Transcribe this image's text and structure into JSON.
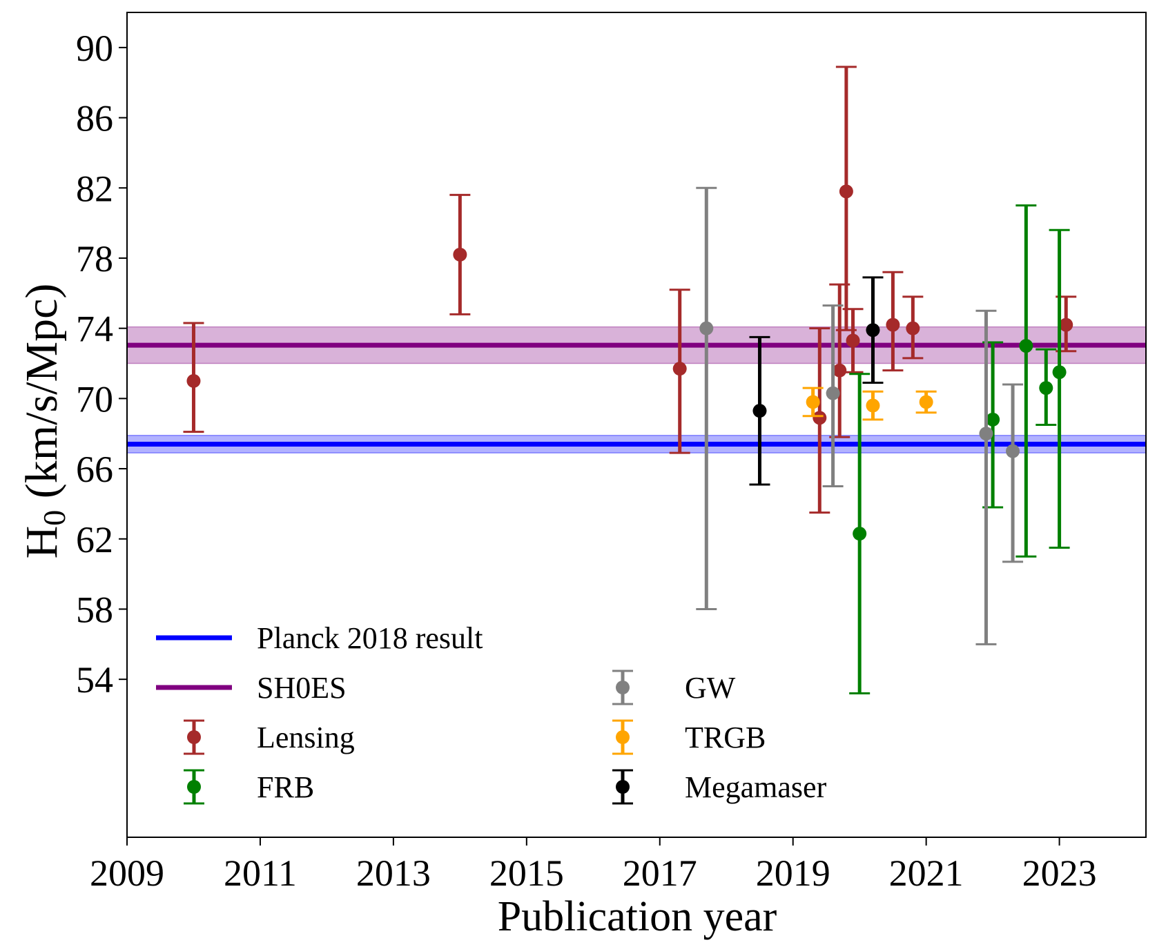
{
  "chart_data": {
    "type": "scatter",
    "xlabel": "Publication year",
    "ylabel_main": "H",
    "ylabel_sub": "0",
    "ylabel_rest": " (km/s/Mpc)",
    "xlim": [
      2009,
      2024.3
    ],
    "ylim": [
      45,
      92
    ],
    "xticks": [
      2009,
      2011,
      2013,
      2015,
      2017,
      2019,
      2021,
      2023
    ],
    "yticks": [
      54,
      58,
      62,
      66,
      70,
      74,
      78,
      82,
      86,
      90
    ],
    "bands": [
      {
        "name": "Planck 2018 result",
        "value": 67.4,
        "err": 0.5,
        "color": "#0000ff"
      },
      {
        "name": "SH0ES",
        "value": 73.04,
        "err": 1.04,
        "color": "#800080"
      }
    ],
    "series": [
      {
        "name": "Lensing",
        "color": "#a52a2a",
        "points": [
          {
            "x": 2010.0,
            "y": 71.0,
            "lo": 68.1,
            "hi": 74.3
          },
          {
            "x": 2014.0,
            "y": 78.2,
            "lo": 74.8,
            "hi": 81.6
          },
          {
            "x": 2017.3,
            "y": 71.7,
            "lo": 66.9,
            "hi": 76.2
          },
          {
            "x": 2019.4,
            "y": 68.9,
            "lo": 63.5,
            "hi": 74.0
          },
          {
            "x": 2019.7,
            "y": 71.6,
            "lo": 67.8,
            "hi": 76.5
          },
          {
            "x": 2019.8,
            "y": 81.8,
            "lo": 73.9,
            "hi": 88.9
          },
          {
            "x": 2019.9,
            "y": 73.3,
            "lo": 71.5,
            "hi": 75.1
          },
          {
            "x": 2020.5,
            "y": 74.2,
            "lo": 71.6,
            "hi": 77.2
          },
          {
            "x": 2020.8,
            "y": 74.0,
            "lo": 72.3,
            "hi": 75.8
          },
          {
            "x": 2023.1,
            "y": 74.2,
            "lo": 72.7,
            "hi": 75.8
          }
        ]
      },
      {
        "name": "FRB",
        "color": "#008000",
        "points": [
          {
            "x": 2020.0,
            "y": 62.3,
            "lo": 53.2,
            "hi": 71.4
          },
          {
            "x": 2022.0,
            "y": 68.8,
            "lo": 63.8,
            "hi": 73.2
          },
          {
            "x": 2022.5,
            "y": 73.0,
            "lo": 61.0,
            "hi": 81.0
          },
          {
            "x": 2022.8,
            "y": 70.6,
            "lo": 68.5,
            "hi": 72.8
          },
          {
            "x": 2023.0,
            "y": 71.5,
            "lo": 61.5,
            "hi": 79.6
          }
        ]
      },
      {
        "name": "GW",
        "color": "#808080",
        "points": [
          {
            "x": 2017.7,
            "y": 74.0,
            "lo": 58.0,
            "hi": 82.0
          },
          {
            "x": 2019.6,
            "y": 70.3,
            "lo": 65.0,
            "hi": 75.3
          },
          {
            "x": 2021.9,
            "y": 68.0,
            "lo": 56.0,
            "hi": 75.0
          },
          {
            "x": 2022.3,
            "y": 67.0,
            "lo": 60.7,
            "hi": 70.8
          }
        ]
      },
      {
        "name": "TRGB",
        "color": "#ffa500",
        "points": [
          {
            "x": 2019.3,
            "y": 69.8,
            "lo": 69.0,
            "hi": 70.6
          },
          {
            "x": 2020.2,
            "y": 69.6,
            "lo": 68.8,
            "hi": 70.4
          },
          {
            "x": 2021.0,
            "y": 69.8,
            "lo": 69.2,
            "hi": 70.4
          }
        ]
      },
      {
        "name": "Megamaser",
        "color": "#000000",
        "points": [
          {
            "x": 2018.5,
            "y": 69.3,
            "lo": 65.1,
            "hi": 73.5
          },
          {
            "x": 2020.2,
            "y": 73.9,
            "lo": 70.9,
            "hi": 76.9
          }
        ]
      }
    ],
    "legend": {
      "left": [
        "Planck 2018 result",
        "SH0ES",
        "Lensing",
        "FRB"
      ],
      "right": [
        "GW",
        "TRGB",
        "Megamaser"
      ],
      "placement": "lower-left"
    }
  }
}
